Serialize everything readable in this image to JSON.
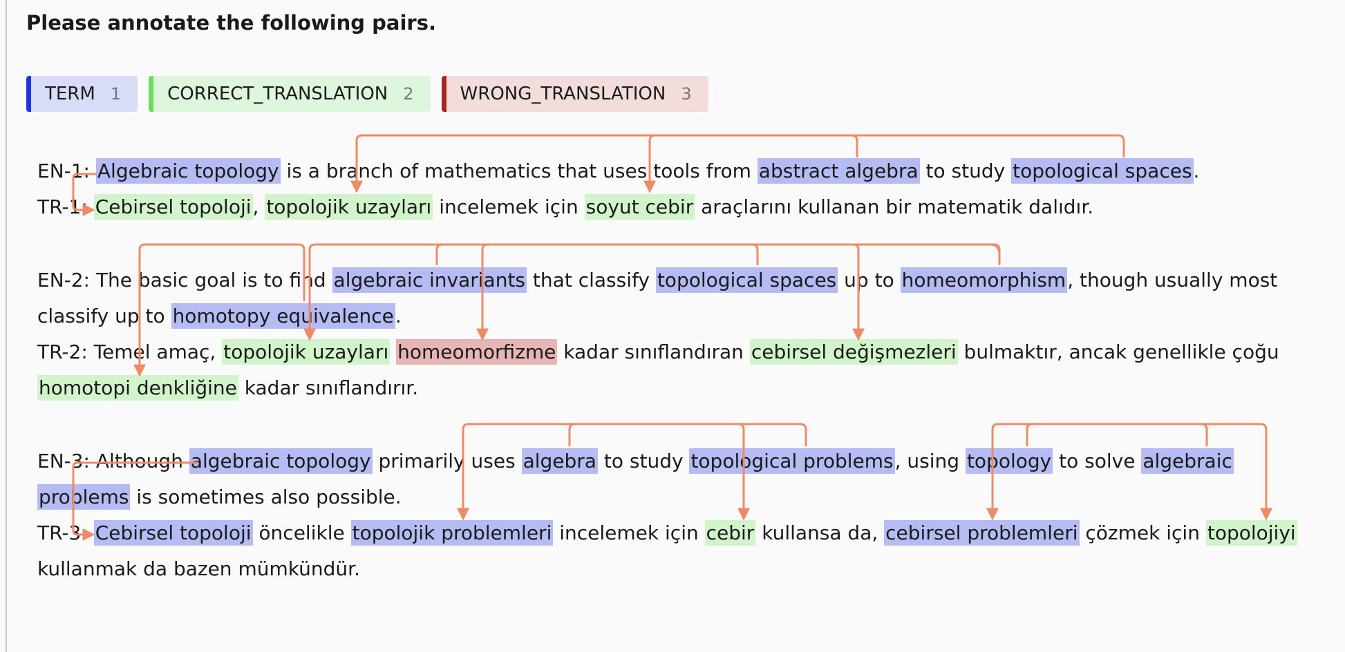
{
  "title": "Please annotate the following pairs.",
  "labels": [
    {
      "name": "TERM",
      "key": "1",
      "color": "#1f35e0"
    },
    {
      "name": "CORRECT_TRANSLATION",
      "key": "2",
      "color": "#66e05c"
    },
    {
      "name": "WRONG_TRANSLATION",
      "key": "3",
      "color": "#a6251d"
    }
  ],
  "arc_color": "#ee8a66",
  "pairs": {
    "en1": {
      "prefix": "EN-1: ",
      "e1": "Algebraic topology",
      "t1": " is a branch of mathematics that uses tools from ",
      "e2": "abstract algebra",
      "t2": " to study ",
      "e3": "topological spaces",
      "t3": "."
    },
    "tr1": {
      "prefix": "TR-1: ",
      "e1": "Cebirsel topoloji",
      "t1": ", ",
      "e2": "topolojik uzayları",
      "t2": " incelemek için ",
      "e3": "soyut cebir",
      "t3": " araçlarını kullanan bir matematik dalıdır."
    },
    "en2": {
      "l1_prefix": "EN-2: The basic goal is to find ",
      "e1": "algebraic invariants",
      "t1": " that classify ",
      "e2": "topological spaces",
      "t2": " up to ",
      "e3": "homeomorphism",
      "t3": ", though usually most",
      "l2_prefix": "classify up to ",
      "e4": "homotopy equivalence",
      "t4": "."
    },
    "tr2": {
      "l1_prefix": "TR-2: Temel amaç, ",
      "e1": "topolojik uzayları",
      "t1": " ",
      "e2": "homeomorfizme",
      "t2": " kadar sınıflandıran ",
      "e3": "cebirsel değişmezleri",
      "t3": " bulmaktır, ancak genellikle çoğu",
      "e4": "homotopi denkliğine",
      "t4": " kadar sınıflandırır."
    },
    "en3": {
      "l1_prefix": "EN-3: Although ",
      "e1": "algebraic topology",
      "t1": " primarily uses ",
      "e2": "algebra",
      "t2": " to study ",
      "e3": "topological problems",
      "t3": ", using ",
      "e4": "topology",
      "t4": " to solve ",
      "e5a": "algebraic",
      "e5b": "problems",
      "t5": " is sometimes also possible."
    },
    "tr3": {
      "l1_prefix": "TR-3: ",
      "e1": "Cebirsel topoloji",
      "t1": " öncelikle ",
      "e2": "topolojik problemleri",
      "t2": " incelemek için ",
      "e3": "cebir",
      "t3": " kullansa da, ",
      "e4": "cebirsel problemleri",
      "t4": " çözmek için ",
      "e5": "topolojiyi",
      "l2": "kullanmak da bazen mümkündür."
    }
  }
}
